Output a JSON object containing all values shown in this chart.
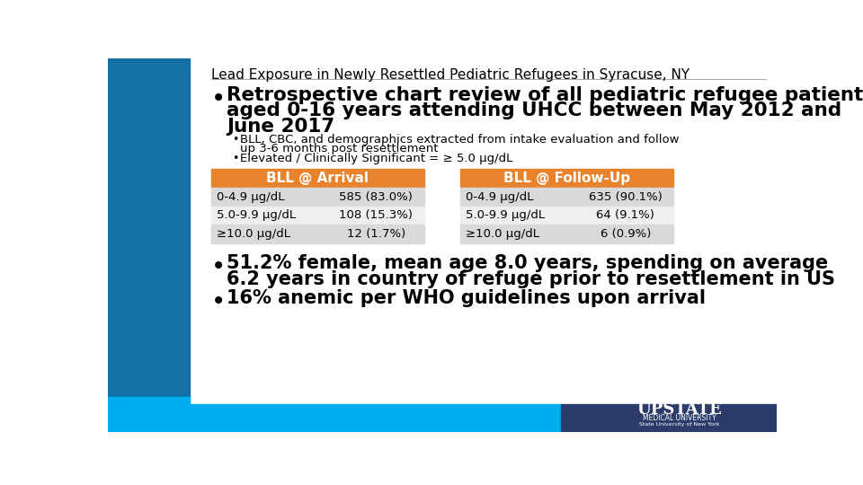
{
  "title": "Lead Exposure in Newly Resettled Pediatric Refugees in Syracuse, NY",
  "bullet1_line1": "Retrospective chart review of all pediatric refugee patients",
  "bullet1_line2": "aged 0-16 years attending UHCC between May 2012 and",
  "bullet1_line3": "June 2017",
  "sub_bullet1_line1": "BLL, CBC, and demographics extracted from intake evaluation and follow",
  "sub_bullet1_line2": "up 3-6 months post resettlement",
  "sub_bullet2": "Elevated / Clinically Significant = ≥ 5.0 μg/dL",
  "table_header_arrival": "BLL @ Arrival",
  "table_header_followup": "BLL @ Follow-Up",
  "arrival_rows": [
    [
      "0-4.9 μg/dL",
      "585 (83.0%)"
    ],
    [
      "5.0-9.9 μg/dL",
      "108 (15.3%)"
    ],
    [
      "≥10.0 μg/dL",
      "12 (1.7%)"
    ]
  ],
  "followup_rows": [
    [
      "0-4.9 μg/dL",
      "635 (90.1%)"
    ],
    [
      "5.0-9.9 μg/dL",
      "64 (9.1%)"
    ],
    [
      "≥10.0 μg/dL",
      "6 (0.9%)"
    ]
  ],
  "bullet2_line1": "51.2% female, mean age 8.0 years, spending on average",
  "bullet2_line2": "6.2 years in country of refuge prior to resettlement in US",
  "bullet3": "16% anemic per WHO guidelines upon arrival",
  "left_bar_color": "#1472A8",
  "left_bar_light_color": "#00AEEF",
  "table_header_color": "#E8822C",
  "table_row_odd": "#D9D9D9",
  "table_row_even": "#EFEFEF",
  "footer_light_blue": "#00AEEF",
  "footer_dark_blue": "#2B3C6B",
  "bg_color": "#FFFFFF",
  "title_color": "#000000",
  "text_color": "#000000",
  "upstate_text": "UPSTATE",
  "upstate_sub1": "MEDICAL UNIVERSITY",
  "upstate_sub2": "State University of New York"
}
